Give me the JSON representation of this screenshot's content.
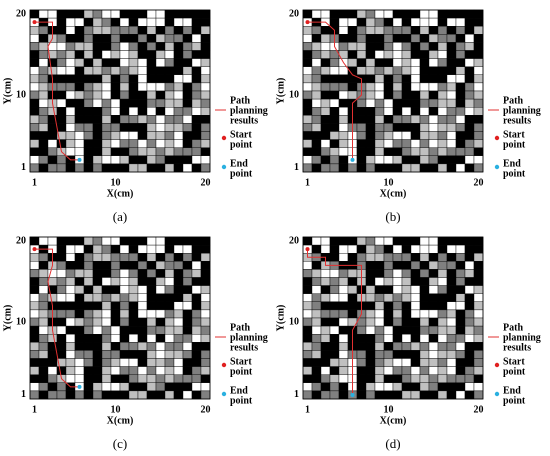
{
  "panels": [
    {
      "caption": "(a)",
      "x_label": "X(cm)",
      "y_label": "Y(cm)",
      "x_ticks": [
        1,
        10,
        20
      ],
      "y_ticks": [
        1,
        10,
        20
      ],
      "legend": {
        "path": [
          "Path",
          "planning",
          "results"
        ],
        "start": [
          "Start",
          "point"
        ],
        "end": [
          "End",
          "point"
        ]
      }
    },
    {
      "caption": "(b)",
      "x_label": "X(cm)",
      "y_label": "Y(cm)",
      "x_ticks": [
        1,
        10,
        20
      ],
      "y_ticks": [
        1,
        10,
        20
      ],
      "legend": {
        "path": [
          "Path",
          "planning",
          "results"
        ],
        "start": [
          "Start",
          "point"
        ],
        "end": [
          "End",
          "point"
        ]
      }
    },
    {
      "caption": "(c)",
      "x_label": "X(cm)",
      "y_label": "Y(cm)",
      "x_ticks": [
        1,
        10,
        20
      ],
      "y_ticks": [
        1,
        10,
        20
      ],
      "legend": {
        "path": [
          "Path",
          "planning",
          "results"
        ],
        "start": [
          "Start",
          "point"
        ],
        "end": [
          "End",
          "point"
        ]
      }
    },
    {
      "caption": "(d)",
      "x_label": "X(cm)",
      "y_label": "Y(cm)",
      "x_ticks": [
        1,
        10,
        20
      ],
      "y_ticks": [
        1,
        10,
        20
      ],
      "legend": {
        "path": [
          "Path",
          "planning",
          "results"
        ],
        "start": [
          "Start",
          "point"
        ],
        "end": [
          "End",
          "point"
        ]
      }
    }
  ]
}
